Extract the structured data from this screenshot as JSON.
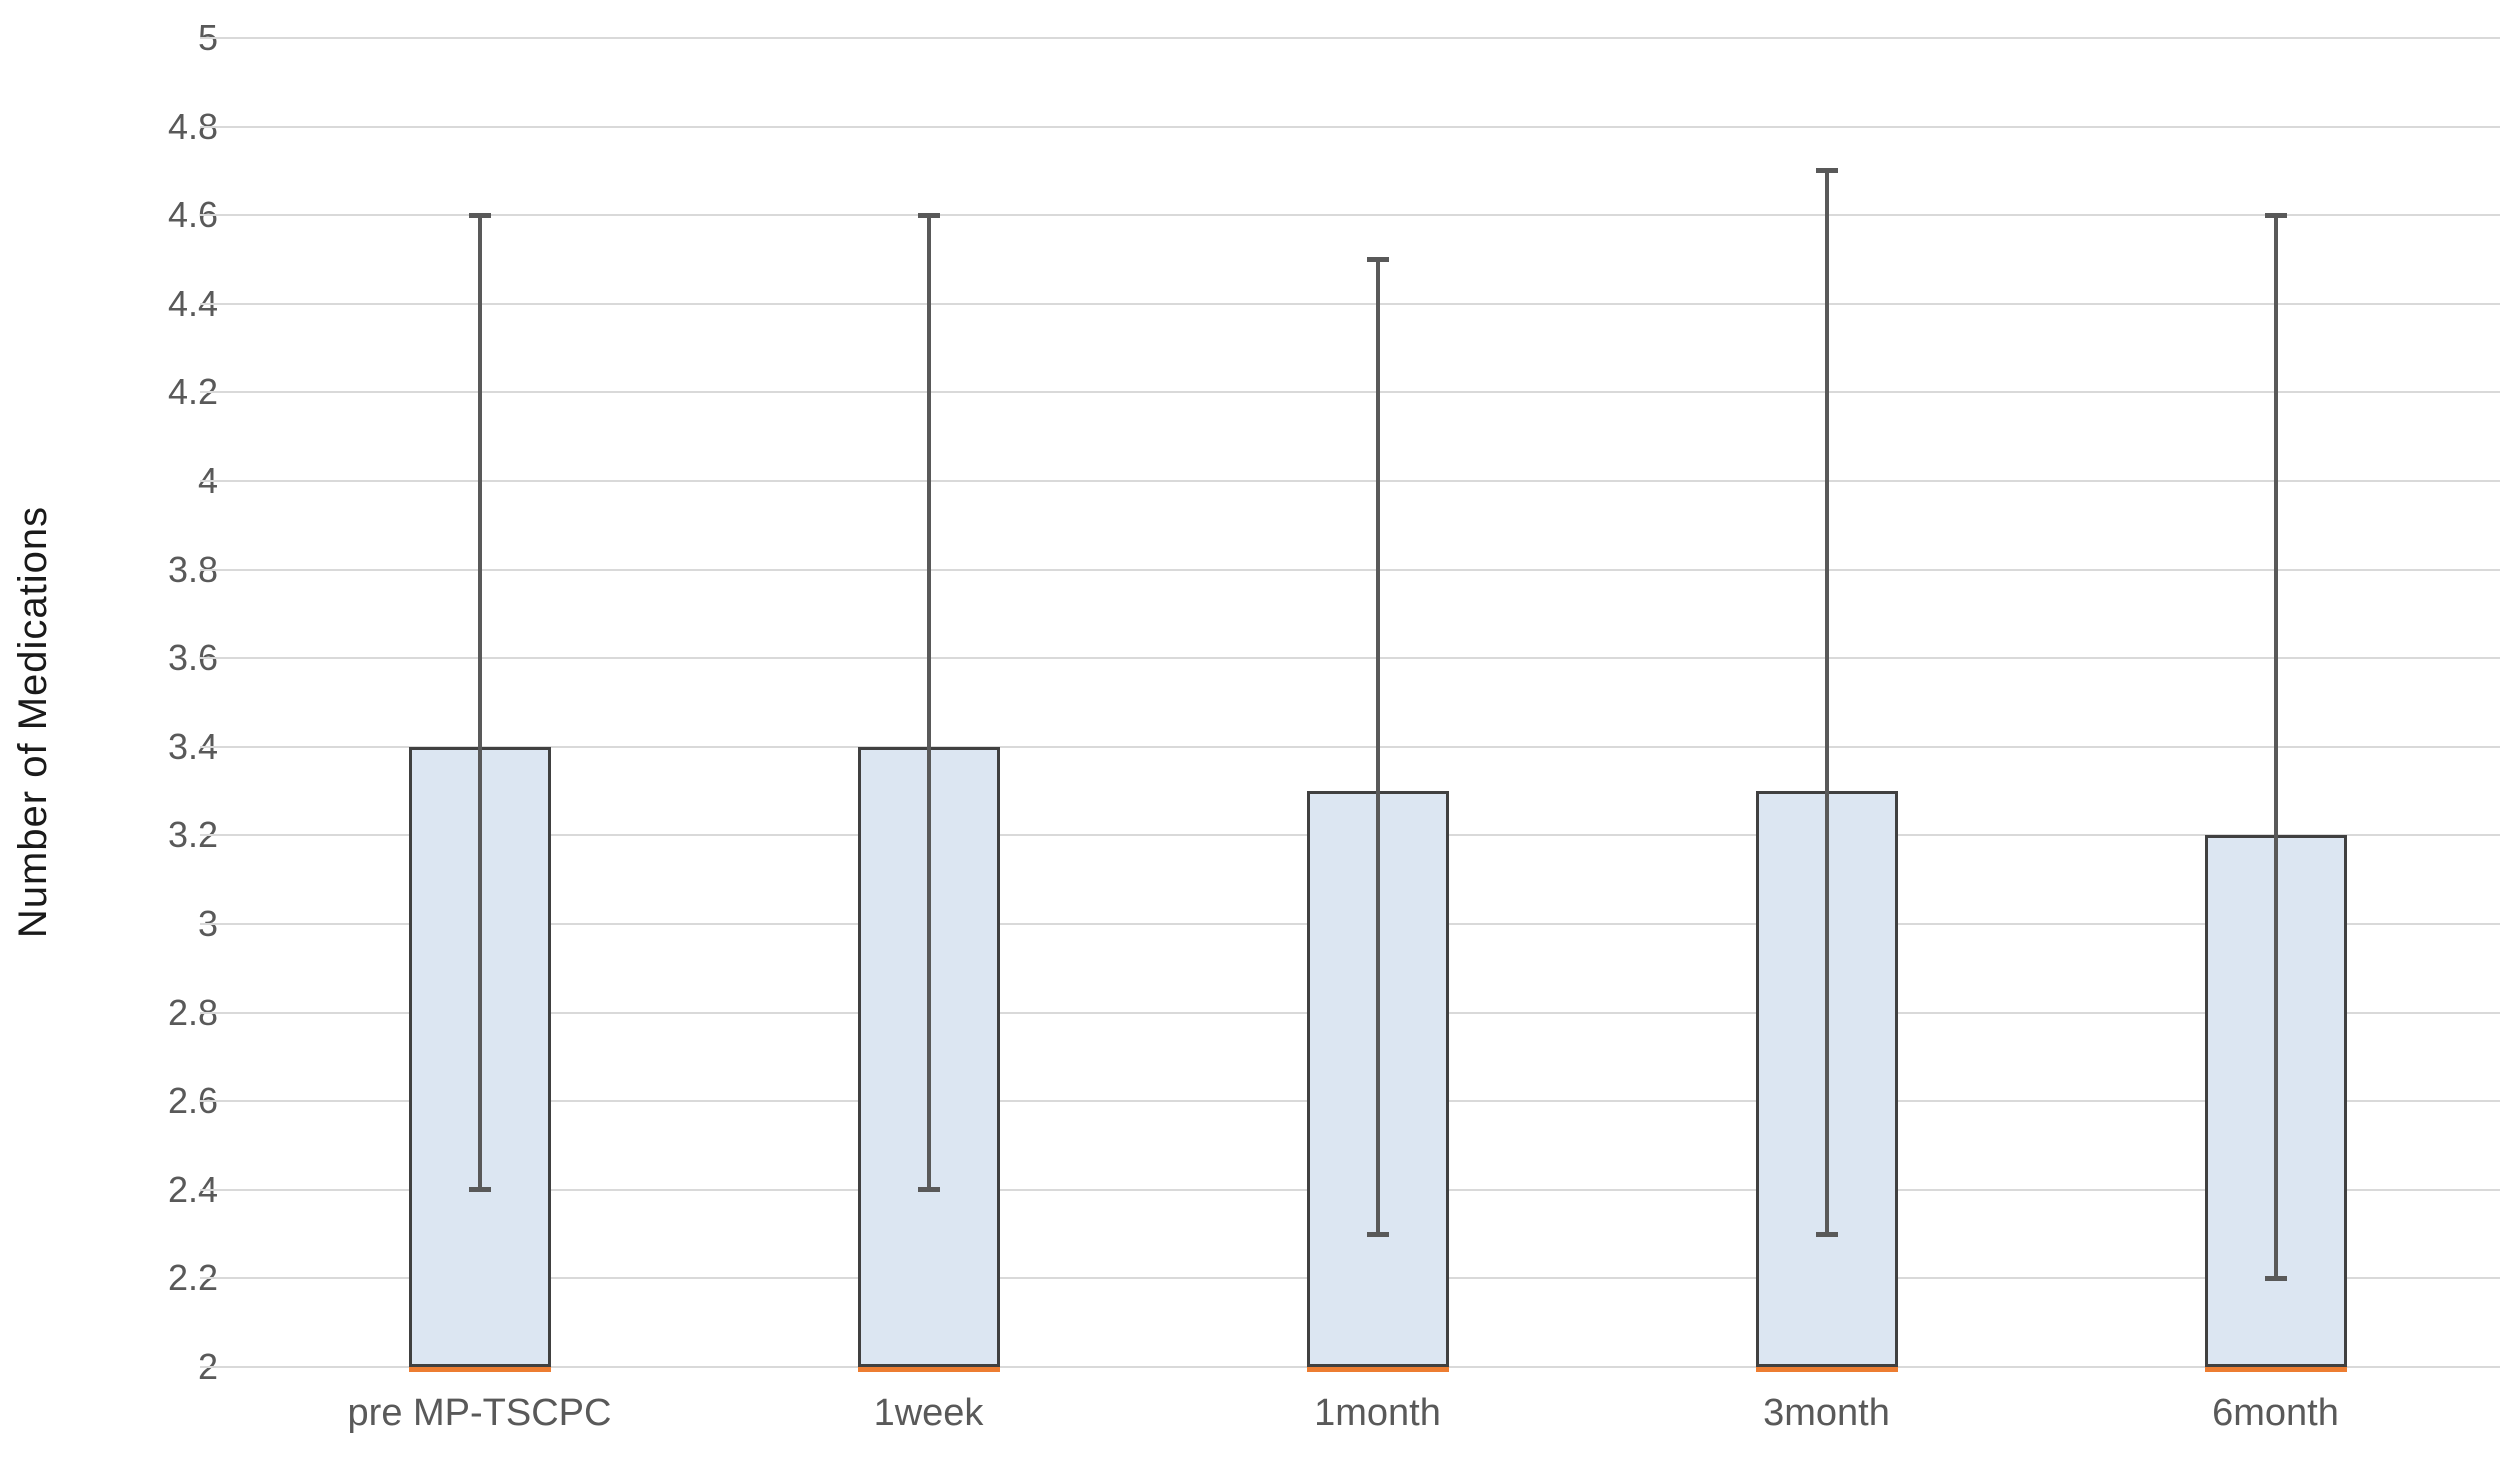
{
  "chart_data": {
    "type": "bar",
    "title": "",
    "xlabel": "",
    "ylabel": "Number of Medications",
    "categories": [
      "pre MP-TSCPC",
      "1week",
      "1month",
      "3month",
      "6month"
    ],
    "series": [
      {
        "name": "Number of Medications",
        "values": [
          3.4,
          3.4,
          3.3,
          3.3,
          3.2
        ]
      }
    ],
    "error_bars": [
      {
        "low": 2.4,
        "high": 4.6
      },
      {
        "low": 2.4,
        "high": 4.6
      },
      {
        "low": 2.3,
        "high": 4.5
      },
      {
        "low": 2.3,
        "high": 4.7
      },
      {
        "low": 2.2,
        "high": 4.6
      }
    ],
    "ylim": [
      2,
      5
    ],
    "ytick_step": 0.2,
    "ytick_labels": [
      "2",
      "2.2",
      "2.4",
      "2.6",
      "2.8",
      "3",
      "3.2",
      "3.4",
      "3.6",
      "3.8",
      "4",
      "4.2",
      "4.4",
      "4.6",
      "4.8",
      "5"
    ],
    "grid": true,
    "legend": "none"
  },
  "colors": {
    "background": "#ffffff",
    "bar_fill": "#dce6f2",
    "bar_border": "#404040",
    "error_bar": "#595959",
    "gridline": "#d9d9d9",
    "tick_label": "#595959",
    "axis_title": "#1a1a1a",
    "baseline_accent": "#ed7d31"
  }
}
